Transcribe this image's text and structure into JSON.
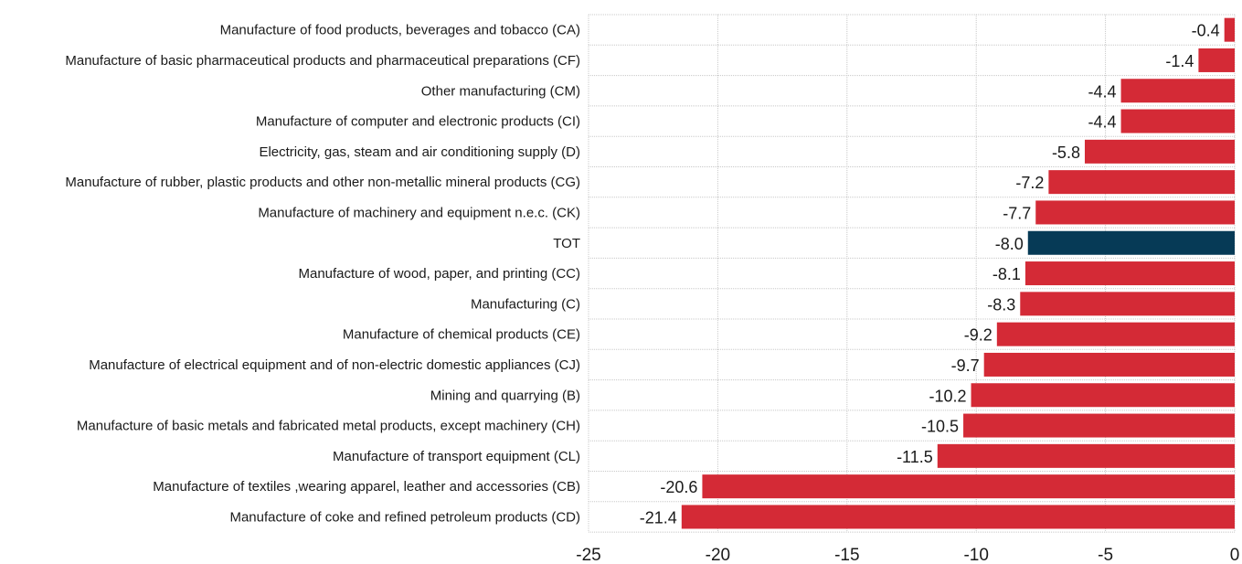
{
  "chart_data": {
    "type": "bar",
    "orientation": "horizontal",
    "title": "",
    "xlabel": "",
    "ylabel": "",
    "xlim": [
      -25,
      0
    ],
    "x_ticks": [
      -25,
      -20,
      -15,
      -10,
      -5,
      0
    ],
    "grid": true,
    "legend": "none",
    "colors": {
      "default": "#d42a36",
      "highlight": "#063a56",
      "grid": "#c8c8c8"
    },
    "categories": [
      "Manufacture of food products, beverages and tobacco (CA)",
      "Manufacture of basic pharmaceutical products and pharmaceutical preparations (CF)",
      "Other manufacturing (CM)",
      "Manufacture of computer and electronic products (CI)",
      "Electricity, gas, steam  and air conditioning supply (D)",
      "Manufacture of rubber,  plastic products and other non-metallic mineral products (CG)",
      "Manufacture of machinery and equipment n.e.c. (CK)",
      "TOT",
      "Manufacture of wood, paper, and printing (CC)",
      "Manufacturing (C)",
      "Manufacture of chemical products (CE)",
      "Manufacture of electrical equipment and of non-electric domestic appliances (CJ)",
      "Mining and quarrying (B)",
      "Manufacture of basic metals and fabricated metal products, except machinery  (CH)",
      "Manufacture of transport equipment (CL)",
      "Manufacture of textiles ,wearing apparel, leather and accessories (CB)",
      "Manufacture of coke and refined petroleum products (CD)"
    ],
    "values": [
      -0.4,
      -1.4,
      -4.4,
      -4.4,
      -5.8,
      -7.2,
      -7.7,
      -8.0,
      -8.1,
      -8.3,
      -9.2,
      -9.7,
      -10.2,
      -10.5,
      -11.5,
      -20.6,
      -21.4
    ],
    "value_labels": [
      "-0.4",
      "-1.4",
      "-4.4",
      "-4.4",
      "-5.8",
      "-7.2",
      "-7.7",
      "-8.0",
      "-8.1",
      "-8.3",
      "-9.2",
      "-9.7",
      "-10.2",
      "-10.5",
      "-11.5",
      "-20.6",
      "-21.4"
    ],
    "highlight_category": "TOT"
  }
}
